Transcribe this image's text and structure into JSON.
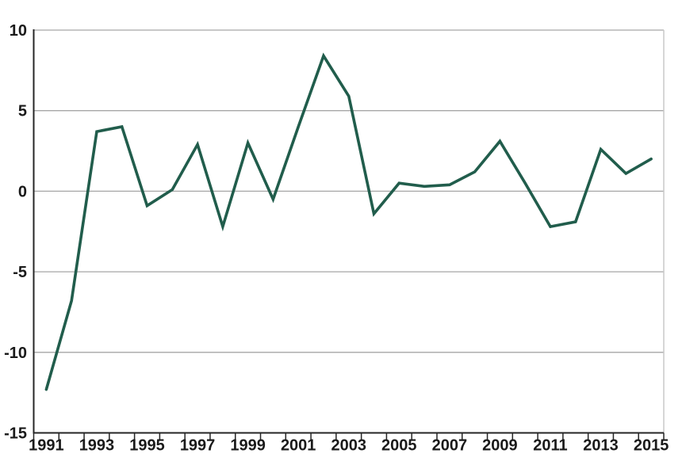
{
  "chart_data": {
    "type": "line",
    "title": "",
    "xlabel": "",
    "ylabel": "",
    "x": [
      1991,
      1992,
      1993,
      1994,
      1995,
      1996,
      1997,
      1998,
      1999,
      2000,
      2001,
      2002,
      2003,
      2004,
      2005,
      2006,
      2007,
      2008,
      2009,
      2010,
      2011,
      2012,
      2013,
      2014,
      2015
    ],
    "series": [
      {
        "name": "value",
        "values": [
          -12.3,
          -6.8,
          3.7,
          4.0,
          -0.9,
          0.1,
          2.9,
          -2.2,
          3.0,
          -0.5,
          4.0,
          8.4,
          5.9,
          -1.4,
          0.5,
          0.3,
          0.4,
          1.2,
          3.1,
          0.5,
          -2.2,
          -1.9,
          2.6,
          1.1,
          2.0
        ]
      }
    ],
    "ylim": [
      -15,
      10
    ],
    "y_ticks": [
      10,
      5,
      0,
      -5,
      -10,
      -15
    ],
    "y_tick_labels": [
      "10",
      "5",
      "0",
      "-5",
      "-10",
      "-15"
    ],
    "x_tick_labels": [
      "1991",
      "1993",
      "1995",
      "1997",
      "1999",
      "2001",
      "2003",
      "2005",
      "2007",
      "2009",
      "2011",
      "2013",
      "2015"
    ],
    "grid": "horizontal",
    "legend": "none",
    "colors": {
      "line": "#215d4c",
      "grid": "#a6a6a6",
      "axis": "#262626",
      "right_border": "#c9c9c9",
      "label": "#1a1a1a",
      "background": "#ffffff"
    }
  }
}
